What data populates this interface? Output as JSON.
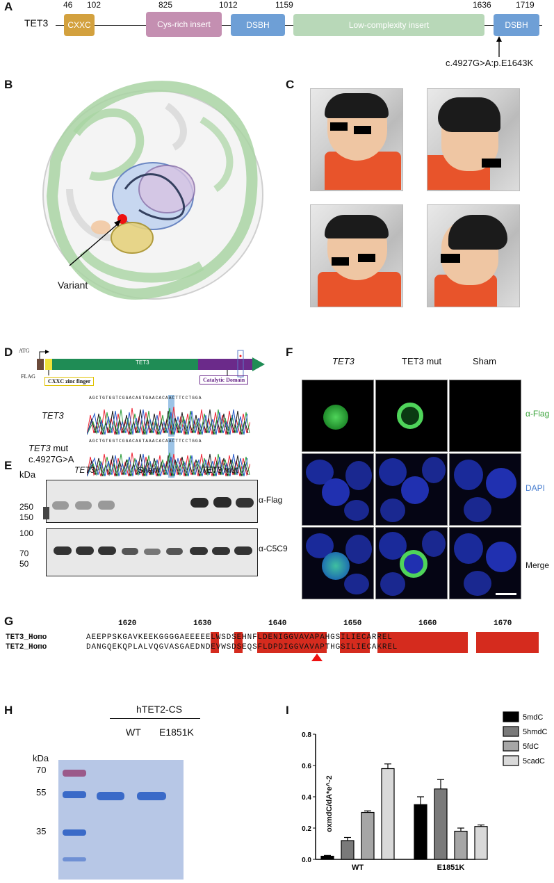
{
  "panelA": {
    "label": "A",
    "gene": "TET3",
    "positions": [
      "46",
      "102",
      "825",
      "1012",
      "1159",
      "1636",
      "1719"
    ],
    "domains": [
      {
        "name": "CXXC",
        "color": "#d3a13e"
      },
      {
        "name": "Cys-rich insert",
        "color": "#c48fb1"
      },
      {
        "name": "DSBH",
        "color": "#6e9fd6"
      },
      {
        "name": "Low-complexity insert",
        "color": "#b8d8b8"
      },
      {
        "name": "DSBH",
        "color": "#6e9fd6"
      }
    ],
    "variant": "c.4927G>A:p.E1643K"
  },
  "panelB": {
    "label": "B",
    "variant_label": "Variant"
  },
  "panelC": {
    "label": "C"
  },
  "panelD": {
    "label": "D",
    "atg": "ATG",
    "flag": "FLAG",
    "gene_bar": "TET3",
    "cxxc_box": "CXXC zinc finger",
    "catalytic_box": "Catalytic Domain",
    "seq1": "AGCTGTGGTCGGACAGTGAACACAACTTCCTGGA",
    "seq2": "AGCTGTGGTCGGACAGTAAACACAACTTCCTGGA",
    "trace1_label": "TET3",
    "trace2_label_a": "TET3",
    "trace2_label_b": " mut",
    "trace2_label_c": "c.4927G>A"
  },
  "panelE": {
    "label": "E",
    "kda": "kDa",
    "groups": [
      "TET3",
      "Sham",
      "TET3 mut"
    ],
    "top_markers": [
      "250",
      "150"
    ],
    "bottom_markers": [
      "100",
      "70",
      "50"
    ],
    "top_antibody": "α-Flag",
    "bottom_antibody": "α-C5C9"
  },
  "panelF": {
    "label": "F",
    "columns": [
      "TET3",
      "TET3 mut",
      "Sham"
    ],
    "rows": [
      "α-Flag",
      "DAPI",
      "Merge"
    ]
  },
  "panelG": {
    "label": "G",
    "ticks": [
      "1620",
      "1630",
      "1640",
      "1650",
      "1660",
      "1670"
    ],
    "row1_name": "TET3_Homo",
    "row2_name": "TET2_Homo",
    "row1_seq": "AEEPPSKGAVKEEKGGGGAEEEEELWSDSEHNFLDENIGGVAVAPAHGSILIECARREL",
    "row2_seq": "DANGQEKQPLALVQGVASGAEDNDEVWSDSEQSFLDPDIGGVAVAPTHGSILIECAKREL"
  },
  "panelH": {
    "label": "H",
    "header": "hTET2-CS",
    "lanes": [
      "WT",
      "E1851K"
    ],
    "kda": "kDa",
    "markers": [
      "70",
      "55",
      "35"
    ]
  },
  "panelI": {
    "label": "I",
    "chart_data": {
      "type": "bar",
      "categories": [
        "WT",
        "E1851K"
      ],
      "ylabel": "oxmdC/dA*e^-2",
      "ylim": [
        0,
        0.8
      ],
      "yticks": [
        "0.0",
        "0.2",
        "0.4",
        "0.6",
        "0.8"
      ],
      "series": [
        {
          "name": "5mdC",
          "values": [
            0.02,
            0.35
          ],
          "errors": [
            0.005,
            0.05
          ],
          "color": "#000000"
        },
        {
          "name": "5hmdC",
          "values": [
            0.12,
            0.45
          ],
          "errors": [
            0.02,
            0.06
          ],
          "color": "#7a7a7a"
        },
        {
          "name": "5fdC",
          "values": [
            0.3,
            0.18
          ],
          "errors": [
            0.01,
            0.02
          ],
          "color": "#a6a6a6"
        },
        {
          "name": "5cadC",
          "values": [
            0.58,
            0.21
          ],
          "errors": [
            0.03,
            0.01
          ],
          "color": "#d9d9d9"
        }
      ]
    }
  }
}
